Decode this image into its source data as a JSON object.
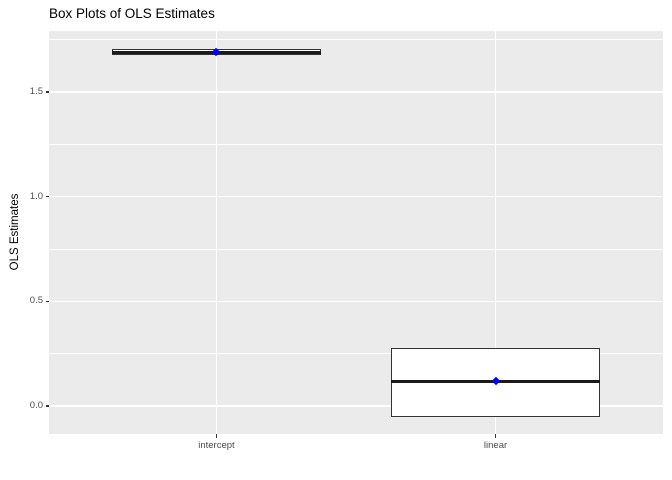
{
  "chart_data": {
    "type": "box",
    "title": "Box Plots of OLS Estimates",
    "xlabel": "",
    "ylabel": "OLS Estimates",
    "categories": [
      "intercept",
      "linear"
    ],
    "series": [
      {
        "category": "intercept",
        "whisker_low": 1.676,
        "q1": 1.676,
        "median": 1.69,
        "q3": 1.704,
        "whisker_high": 1.704,
        "mean": 1.69
      },
      {
        "category": "linear",
        "whisker_low": -0.053,
        "q1": -0.053,
        "median": 0.118,
        "q3": 0.275,
        "whisker_high": 0.275,
        "mean": 0.118
      }
    ],
    "y_ticks": [
      0.0,
      0.5,
      1.0,
      1.5
    ],
    "y_tick_labels": [
      "0.0",
      "0.5",
      "1.0",
      "1.5"
    ],
    "y_minor_ticks": [
      0.25,
      0.75,
      1.25,
      1.75
    ],
    "ylim": [
      -0.134,
      1.792
    ],
    "grid": true,
    "legend_position": "none",
    "box_width_fraction": 0.75,
    "colors": {
      "panel_background": "#EBEBEB",
      "gridline": "#FFFFFF",
      "box_fill": "#FFFFFF",
      "box_border": "#333333",
      "median_line": "#1A1A1A",
      "mean_point": "#0000FF",
      "tick_mark": "#333333",
      "tick_label": "#4D4D4D",
      "title_color": "#000000"
    }
  }
}
